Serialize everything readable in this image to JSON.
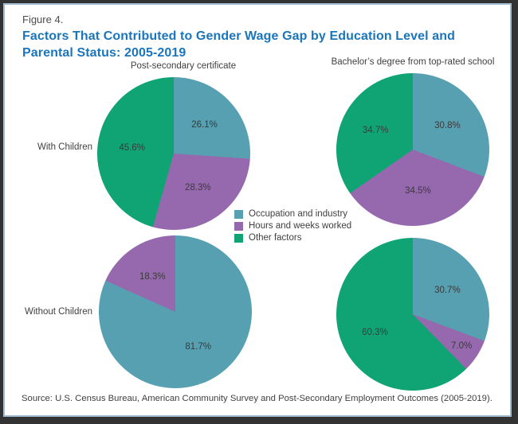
{
  "figure": {
    "label": "Figure 4.",
    "title_line1": "Factors That Contributed to Gender Wage Gap by Education Level and",
    "title_line2": "Parental Status: 2005-2019"
  },
  "columns": [
    "Post-secondary certificate",
    "Bachelor’s degree from top-rated school"
  ],
  "rows": [
    "With Children",
    "Without Children"
  ],
  "legend": [
    {
      "label": "Occupation and industry",
      "color": "#56a0b1"
    },
    {
      "label": "Hours and weeks worked",
      "color": "#9669ae"
    },
    {
      "label": "Other factors",
      "color": "#10a474"
    }
  ],
  "colors": {
    "title": "#1a75bb",
    "frame_border": "#a2bcd2",
    "outer_border": "#333333",
    "label_text": "#3f3f3f"
  },
  "source": "Source: U.S. Census Bureau, American Community Survey and Post-Secondary Employment Outcomes (2005-2019).",
  "chart_data": [
    {
      "type": "pie",
      "row": "With Children",
      "column": "Post-secondary certificate",
      "slices": [
        {
          "label": "Occupation and industry",
          "value": 26.1,
          "display": "26.1%"
        },
        {
          "label": "Hours and weeks worked",
          "value": 28.3,
          "display": "28.3%"
        },
        {
          "label": "Other factors",
          "value": 45.6,
          "display": "45.6%"
        }
      ]
    },
    {
      "type": "pie",
      "row": "With Children",
      "column": "Bachelor’s degree from top-rated school",
      "slices": [
        {
          "label": "Occupation and industry",
          "value": 30.8,
          "display": "30.8%"
        },
        {
          "label": "Hours and weeks worked",
          "value": 34.5,
          "display": "34.5%"
        },
        {
          "label": "Other factors",
          "value": 34.7,
          "display": "34.7%"
        }
      ]
    },
    {
      "type": "pie",
      "row": "Without Children",
      "column": "Post-secondary certificate",
      "slices": [
        {
          "label": "Occupation and industry",
          "value": 81.7,
          "display": "81.7%"
        },
        {
          "label": "Hours and weeks worked",
          "value": 18.3,
          "display": "18.3%"
        }
      ]
    },
    {
      "type": "pie",
      "row": "Without Children",
      "column": "Bachelor’s degree from top-rated school",
      "slices": [
        {
          "label": "Occupation and industry",
          "value": 30.7,
          "display": "30.7%"
        },
        {
          "label": "Hours and weeks worked",
          "value": 7.0,
          "display": "7.0%"
        },
        {
          "label": "Other factors",
          "value": 60.3,
          "display": "60.3%"
        }
      ]
    }
  ]
}
